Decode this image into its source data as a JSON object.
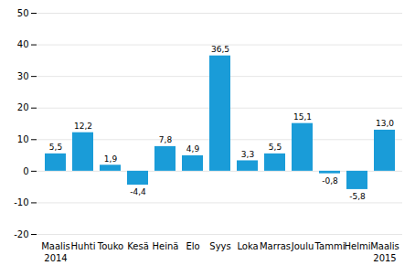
{
  "chart_data": {
    "type": "bar",
    "categories": [
      "Maalis",
      "Huhti",
      "Touko",
      "Kesä",
      "Heinä",
      "Elo",
      "Syys",
      "Loka",
      "Marras",
      "Joulu",
      "Tammi",
      "Helmi",
      "Maalis"
    ],
    "values": [
      5.5,
      12.2,
      1.9,
      -4.4,
      7.8,
      4.9,
      36.5,
      3.3,
      5.5,
      15.1,
      -0.8,
      -5.8,
      13.0
    ],
    "value_labels": [
      "5,5",
      "12,2",
      "1,9",
      "-4,4",
      "7,8",
      "4,9",
      "36,5",
      "3,3",
      "5,5",
      "15,1",
      "-0,8",
      "-5,8",
      "13,0"
    ],
    "data_labels": true,
    "color": "#1a9cd8",
    "ylim": [
      -20,
      50
    ],
    "yticks": [
      -20,
      -10,
      0,
      10,
      20,
      30,
      40,
      50
    ],
    "grid": true,
    "annotations": [
      {
        "text": "2014",
        "index": 0
      },
      {
        "text": "2015",
        "index": 12
      }
    ]
  }
}
